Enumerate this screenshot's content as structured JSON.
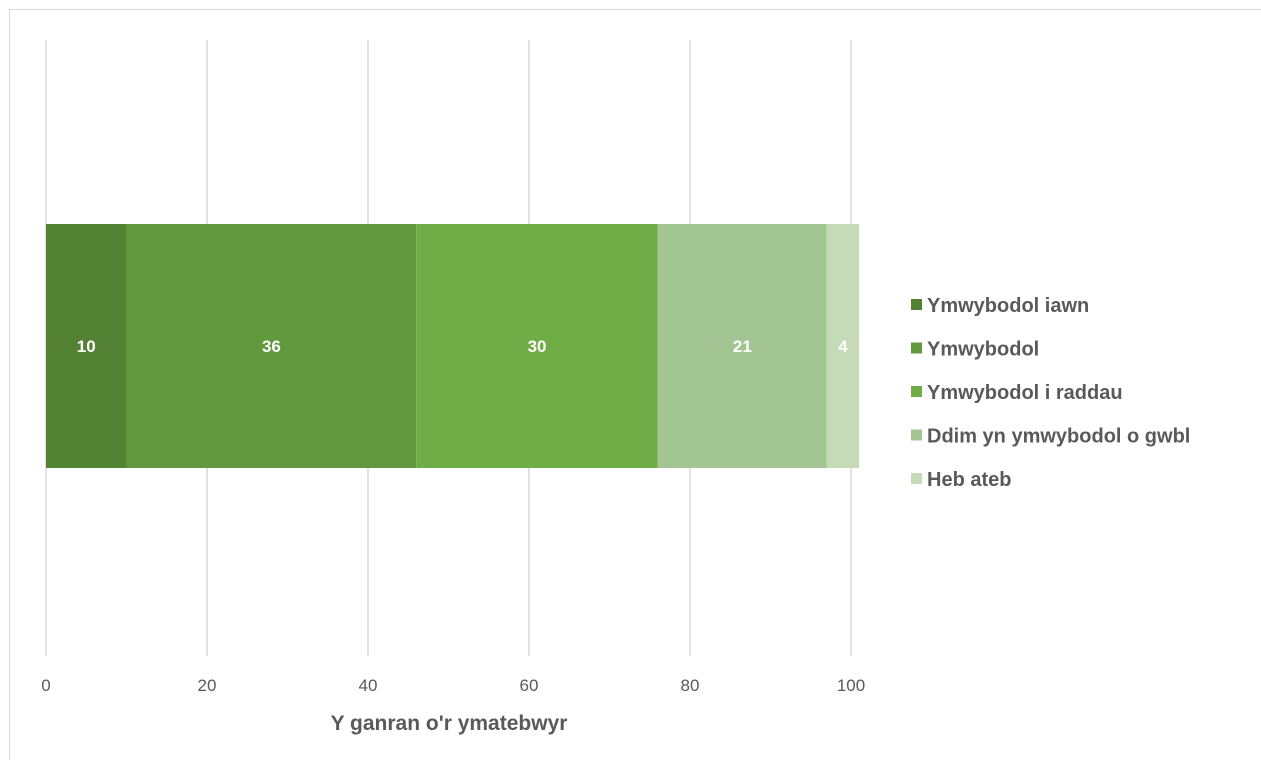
{
  "chart_data": {
    "type": "bar",
    "orientation": "horizontal",
    "stacked": true,
    "categories": [
      ""
    ],
    "series": [
      {
        "name": "Ymwybodol iawn",
        "values": [
          10
        ],
        "color": "#548235"
      },
      {
        "name": "Ymwybodol",
        "values": [
          36
        ],
        "color": "#62993e"
      },
      {
        "name": "Ymwybodol i raddau",
        "values": [
          30
        ],
        "color": "#70ad47"
      },
      {
        "name": "Ddim yn ymwybodol o gwbl",
        "values": [
          21
        ],
        "color": "#a3c593"
      },
      {
        "name": "Heb ateb",
        "values": [
          4
        ],
        "color": "#c5dbb8"
      }
    ],
    "data_labels": [
      "10",
      "36",
      "30",
      "21",
      "4"
    ],
    "xlabel": "Y ganran o'r ymatebwyr",
    "ylabel": "",
    "xlim": [
      0,
      100
    ],
    "x_ticks": [
      "0",
      "20",
      "40",
      "60",
      "80",
      "100"
    ],
    "grid": "vertical",
    "legend_position": "right",
    "gridline_color": "#d9d9d9"
  }
}
